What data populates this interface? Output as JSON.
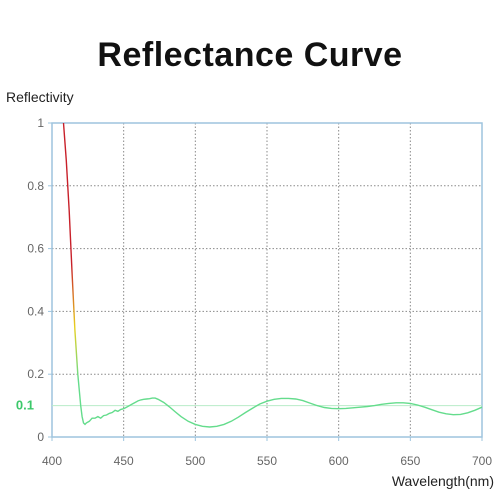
{
  "chart_data": {
    "type": "line",
    "title": "Reflectance Curve",
    "xlabel": "Wavelength(nm)",
    "ylabel": "Reflectivity",
    "xlim": [
      400,
      700
    ],
    "ylim": [
      0,
      1
    ],
    "xticks": [
      400,
      450,
      500,
      550,
      600,
      650,
      700
    ],
    "yticks": [
      0,
      0.2,
      0.4,
      0.6,
      0.8,
      1
    ],
    "ytick_labels": [
      "0",
      "0.2",
      "0.4",
      "0.6",
      "0.8",
      "1"
    ],
    "grid": true,
    "reference_line": {
      "y": 0.1,
      "label": "0.1",
      "color": "#3cc86a"
    },
    "curve_colors": {
      "high": "#c8202a",
      "mid": "#e8d020",
      "low": "#64dc8c"
    },
    "series": [
      {
        "x": [
          408,
          410,
          412,
          414,
          416,
          418,
          420,
          421,
          422,
          423,
          424,
          426,
          428,
          430,
          432,
          434,
          436,
          438,
          440,
          442,
          444,
          446,
          448,
          450,
          452,
          454,
          456,
          458,
          460,
          462,
          464,
          466,
          468,
          470,
          472,
          474,
          478,
          482,
          486,
          490,
          495,
          500,
          505,
          510,
          515,
          520,
          525,
          530,
          535,
          540,
          545,
          550,
          555,
          560,
          565,
          570,
          575,
          580,
          585,
          590,
          595,
          600,
          605,
          610,
          615,
          620,
          625,
          630,
          635,
          640,
          645,
          650,
          655,
          660,
          665,
          670,
          675,
          680,
          685,
          690,
          695,
          700
        ],
        "y": [
          1.0,
          0.88,
          0.72,
          0.52,
          0.34,
          0.2,
          0.1,
          0.065,
          0.045,
          0.04,
          0.045,
          0.05,
          0.06,
          0.06,
          0.065,
          0.06,
          0.068,
          0.07,
          0.075,
          0.078,
          0.085,
          0.082,
          0.088,
          0.09,
          0.095,
          0.1,
          0.105,
          0.11,
          0.115,
          0.118,
          0.12,
          0.121,
          0.122,
          0.124,
          0.124,
          0.12,
          0.11,
          0.096,
          0.08,
          0.065,
          0.05,
          0.04,
          0.034,
          0.032,
          0.034,
          0.04,
          0.05,
          0.063,
          0.078,
          0.092,
          0.105,
          0.114,
          0.12,
          0.123,
          0.123,
          0.121,
          0.116,
          0.108,
          0.1,
          0.094,
          0.091,
          0.09,
          0.091,
          0.093,
          0.095,
          0.097,
          0.1,
          0.104,
          0.107,
          0.109,
          0.109,
          0.107,
          0.102,
          0.095,
          0.087,
          0.079,
          0.074,
          0.071,
          0.072,
          0.077,
          0.085,
          0.095
        ]
      }
    ]
  }
}
